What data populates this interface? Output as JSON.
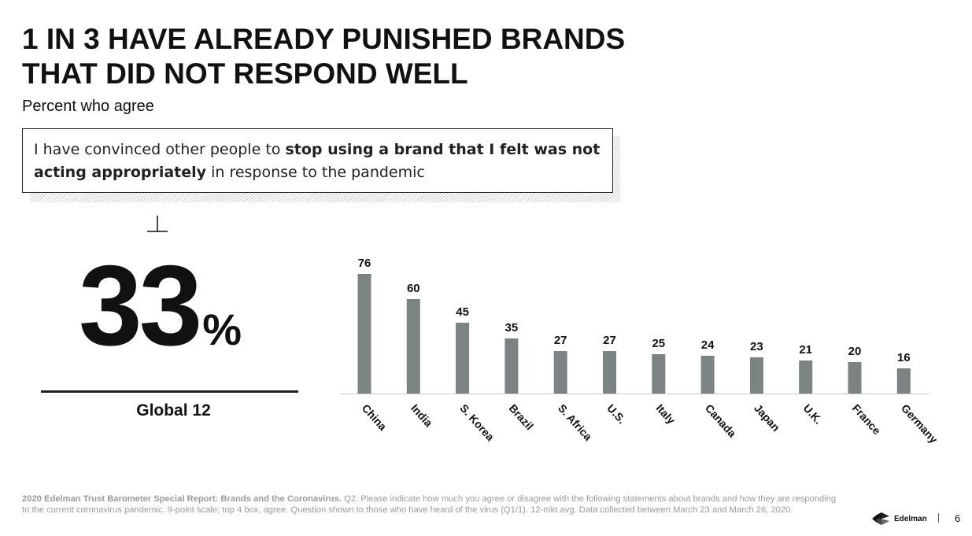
{
  "slide": {
    "title_line1": "1 IN 3 HAVE ALREADY PUNISHED BRANDS",
    "title_line2": "THAT DID NOT RESPOND WELL",
    "subtitle": "Percent who agree",
    "quote": {
      "part1": "I have convinced other people to ",
      "part2_bold": "stop using a brand that I felt was not acting appropriately",
      "part3": " in response to the pandemic"
    },
    "headline_value": "33",
    "headline_unit": "%",
    "headline_label": "Global 12",
    "footnote_bold": "2020 Edelman Trust Barometer Special Report: Brands and the Coronavirus.",
    "footnote_text": " Q2. Please indicate how much you agree or disagree with the following statements about brands and how they are responding to the current coronavirus pandemic. 9-point scale; top 4 box, agree. Question shown to those who have heard of the virus (Q1/1). 12-mkt avg. Data collected between March 23 and March 26, 2020.",
    "brand_name": "Edelman",
    "page_number": "6",
    "icons": {
      "marker": "perpendicular-marker-icon",
      "logo": "edelman-logo-icon"
    }
  },
  "chart_data": {
    "type": "bar",
    "categories": [
      "China",
      "India",
      "S. Korea",
      "Brazil",
      "S. Africa",
      "U.S.",
      "Italy",
      "Canada",
      "Japan",
      "U.K.",
      "France",
      "Germany"
    ],
    "values": [
      76,
      60,
      45,
      35,
      27,
      27,
      25,
      24,
      23,
      21,
      20,
      16
    ],
    "title": "",
    "xlabel": "",
    "ylabel": "",
    "ylim": [
      0,
      76
    ],
    "grid": false,
    "legend": "none",
    "colors": {
      "bar": "#7b8483",
      "baseline": "#cccccc",
      "label": "#111111"
    }
  }
}
